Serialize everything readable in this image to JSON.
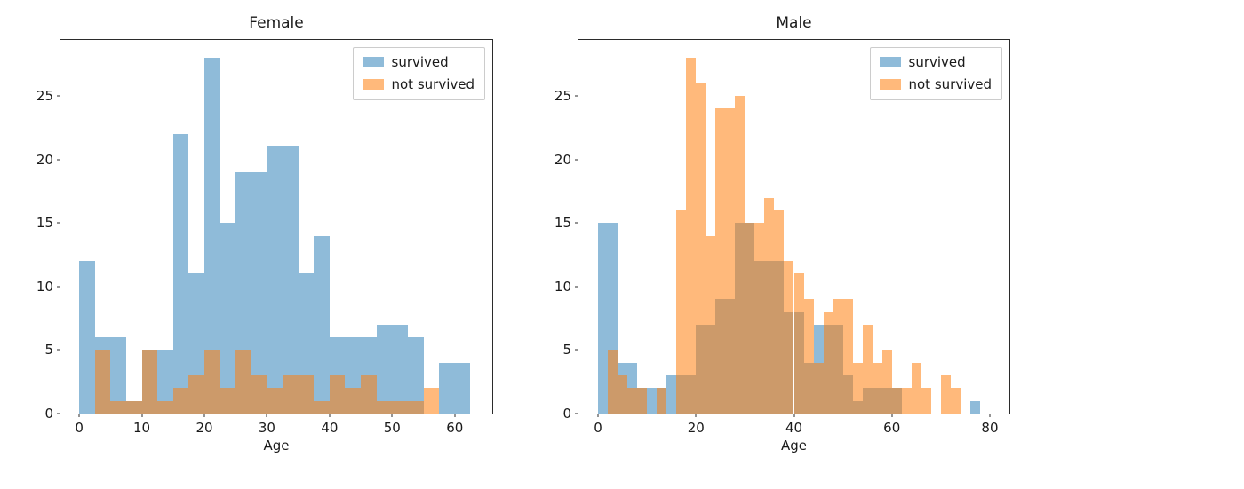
{
  "figure": {
    "background": "#ffffff"
  },
  "colors": {
    "survived": "#1f77b4",
    "not_survived": "#ff7f0e",
    "survived_fill": "rgba(31,119,180,0.5)",
    "not_survived_fill": "rgba(255,127,14,0.55)",
    "spine": "#2b2b2b",
    "text": "#1a1a1a"
  },
  "chart_data": [
    {
      "type": "bar",
      "subtype": "overlaid-histogram",
      "title": "Female",
      "xlabel": "Age",
      "ylabel": "",
      "xlim": [
        -3,
        66
      ],
      "ylim": [
        0,
        29.4
      ],
      "xticks": [
        0,
        10,
        20,
        30,
        40,
        50,
        60
      ],
      "yticks": [
        0,
        5,
        10,
        15,
        20,
        25
      ],
      "bin_start": 0,
      "bin_width": 2.5,
      "grid": false,
      "legend_position": "upper right",
      "legend": [
        "survived",
        "not survived"
      ],
      "series": [
        {
          "name": "survived",
          "color": "#1f77b4",
          "fill": "rgba(31,119,180,0.5)",
          "values": [
            12,
            6,
            6,
            1,
            5,
            5,
            22,
            11,
            28,
            15,
            19,
            19,
            21,
            21,
            11,
            14,
            6,
            6,
            6,
            7,
            7,
            6,
            0,
            4,
            4
          ]
        },
        {
          "name": "not survived",
          "color": "#ff7f0e",
          "fill": "rgba(255,127,14,0.55)",
          "values": [
            0,
            5,
            1,
            1,
            5,
            1,
            2,
            3,
            5,
            2,
            5,
            3,
            2,
            3,
            3,
            1,
            3,
            2,
            3,
            1,
            1,
            1,
            2,
            0,
            0
          ]
        }
      ]
    },
    {
      "type": "bar",
      "subtype": "overlaid-histogram",
      "title": "Male",
      "xlabel": "Age",
      "ylabel": "",
      "xlim": [
        -4,
        84
      ],
      "ylim": [
        0,
        29.4
      ],
      "xticks": [
        0,
        20,
        40,
        60,
        80
      ],
      "yticks": [
        0,
        5,
        10,
        15,
        20,
        25
      ],
      "bin_start": 0,
      "bin_width": 2,
      "grid": false,
      "legend_position": "upper right",
      "legend": [
        "survived",
        "not survived"
      ],
      "series": [
        {
          "name": "survived",
          "color": "#1f77b4",
          "fill": "rgba(31,119,180,0.5)",
          "values": [
            15,
            15,
            4,
            4,
            2,
            2,
            2,
            3,
            3,
            3,
            7,
            7,
            9,
            9,
            15,
            15,
            12,
            12,
            12,
            8,
            8,
            4,
            7,
            7,
            7,
            3,
            1,
            2,
            2,
            2,
            2,
            0,
            0,
            0,
            0,
            0,
            0,
            0,
            1,
            0
          ]
        },
        {
          "name": "not survived",
          "color": "#ff7f0e",
          "fill": "rgba(255,127,14,0.55)",
          "values": [
            0,
            5,
            3,
            2,
            2,
            0,
            2,
            0,
            16,
            28,
            26,
            14,
            24,
            24,
            25,
            15,
            15,
            17,
            16,
            12,
            11,
            9,
            4,
            8,
            9,
            9,
            4,
            7,
            4,
            5,
            2,
            2,
            4,
            2,
            0,
            3,
            2,
            0,
            0,
            0
          ]
        }
      ]
    }
  ]
}
